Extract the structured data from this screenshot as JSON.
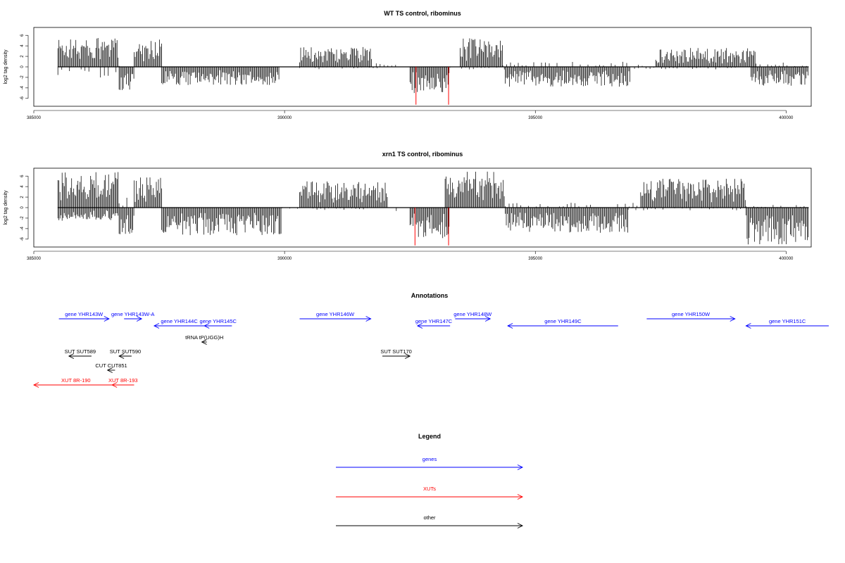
{
  "chart_data": [
    {
      "type": "bar",
      "title": "WT TS control, ribominus",
      "xlabel": "",
      "ylabel": "log2 tag density",
      "xlim": [
        385000,
        400500
      ],
      "ylim": [
        -7.5,
        7.5
      ],
      "xticks": [
        385000,
        390000,
        395000,
        400000
      ],
      "yticks": [
        -6,
        -4,
        -2,
        0,
        2,
        4,
        6
      ],
      "data_range": [
        385480,
        400450
      ],
      "grid": false,
      "series": [
        {
          "strand": "+",
          "color": "#000000",
          "segments": [
            {
              "from": 385480,
              "to": 386700,
              "max": 5.5
            },
            {
              "from": 386700,
              "to": 386750,
              "max": 1.0
            },
            {
              "from": 387000,
              "to": 387550,
              "max": 5.3
            },
            {
              "from": 390300,
              "to": 391750,
              "max": 3.8
            },
            {
              "from": 391750,
              "to": 392300,
              "max": 1.0
            },
            {
              "from": 393500,
              "to": 394350,
              "max": 5.5
            },
            {
              "from": 394350,
              "to": 397400,
              "max": 1.0
            },
            {
              "from": 397400,
              "to": 399400,
              "max": 3.6
            },
            {
              "from": 399400,
              "to": 400450,
              "max": 0.8
            }
          ]
        },
        {
          "strand": "-",
          "color": "#000000",
          "segments": [
            {
              "from": 385480,
              "to": 386700,
              "max": 2.2
            },
            {
              "from": 386700,
              "to": 387000,
              "max": 4.8
            },
            {
              "from": 387550,
              "to": 389900,
              "max": 3.5
            },
            {
              "from": 390300,
              "to": 391900,
              "max": 0.5
            },
            {
              "from": 392500,
              "to": 393300,
              "max": 5.0
            },
            {
              "from": 393300,
              "to": 394400,
              "max": 0.5
            },
            {
              "from": 394400,
              "to": 396900,
              "max": 3.8
            },
            {
              "from": 396900,
              "to": 399000,
              "max": 0.5
            },
            {
              "from": 399300,
              "to": 400450,
              "max": 3.6
            }
          ]
        },
        {
          "strand": "-",
          "color": "#ff0000",
          "positions": [
            392620,
            393270
          ],
          "value": 7.2
        }
      ]
    },
    {
      "type": "bar",
      "title": "xrn1 TS control, ribominus",
      "xlabel": "",
      "ylabel": "log2 tag density",
      "xlim": [
        385000,
        400500
      ],
      "ylim": [
        -7.5,
        7.5
      ],
      "xticks": [
        385000,
        390000,
        395000,
        400000
      ],
      "yticks": [
        -6,
        -4,
        -2,
        0,
        2,
        4,
        6
      ],
      "data_range": [
        385480,
        400450
      ],
      "grid": false,
      "series": [
        {
          "strand": "+",
          "color": "#000000",
          "segments": [
            {
              "from": 385480,
              "to": 386700,
              "max": 6.8
            },
            {
              "from": 386700,
              "to": 386950,
              "max": 2.0
            },
            {
              "from": 387000,
              "to": 387550,
              "max": 5.8
            },
            {
              "from": 390300,
              "to": 392050,
              "max": 5.0
            },
            {
              "from": 393200,
              "to": 394400,
              "max": 7.0
            },
            {
              "from": 394400,
              "to": 397100,
              "max": 1.0
            },
            {
              "from": 397100,
              "to": 399200,
              "max": 5.5
            },
            {
              "from": 399200,
              "to": 400450,
              "max": 0.5
            }
          ]
        },
        {
          "strand": "-",
          "color": "#000000",
          "segments": [
            {
              "from": 385480,
              "to": 386700,
              "max": 2.5
            },
            {
              "from": 386700,
              "to": 387000,
              "max": 5.2
            },
            {
              "from": 387550,
              "to": 389950,
              "max": 5.3
            },
            {
              "from": 389950,
              "to": 391900,
              "max": 0.6
            },
            {
              "from": 392150,
              "to": 392300,
              "max": 2.0
            },
            {
              "from": 392500,
              "to": 393300,
              "max": 6.0
            },
            {
              "from": 394400,
              "to": 396850,
              "max": 4.8
            },
            {
              "from": 396850,
              "to": 399200,
              "max": 0.5
            },
            {
              "from": 399200,
              "to": 400450,
              "max": 7.0
            }
          ]
        },
        {
          "strand": "-",
          "color": "#ff0000",
          "positions": [
            392600,
            393270
          ],
          "value": 7.2
        }
      ]
    }
  ],
  "annotations": {
    "title": "Annotations",
    "color_by_kind": {
      "gene": "#0000ff",
      "xut": "#ff0000",
      "other": "#000000"
    },
    "items": [
      {
        "label": "gene YHR143W",
        "kind": "gene",
        "strand": "+",
        "start": 385500,
        "end": 386500,
        "row": 0
      },
      {
        "label": "gene YHR143W-A",
        "kind": "gene",
        "strand": "+",
        "start": 386800,
        "end": 387150,
        "row": 0
      },
      {
        "label": "gene YHR144C",
        "kind": "gene",
        "strand": "-",
        "start": 387400,
        "end": 388400,
        "row": 1
      },
      {
        "label": "gene YHR145C",
        "kind": "gene",
        "strand": "-",
        "start": 388400,
        "end": 388950,
        "row": 1
      },
      {
        "label": "tRNA tP(UGG)H",
        "kind": "other",
        "strand": "-",
        "start": 388350,
        "end": 388450,
        "row": 2
      },
      {
        "label": "gene YHR146W",
        "kind": "gene",
        "strand": "+",
        "start": 390300,
        "end": 391720,
        "row": 0
      },
      {
        "label": "gene YHR147C",
        "kind": "gene",
        "strand": "-",
        "start": 392650,
        "end": 393300,
        "row": 1
      },
      {
        "label": "gene YHR148W",
        "kind": "gene",
        "strand": "+",
        "start": 393400,
        "end": 394100,
        "row": 0
      },
      {
        "label": "gene YHR149C",
        "kind": "gene",
        "strand": "-",
        "start": 394450,
        "end": 396650,
        "row": 1
      },
      {
        "label": "gene YHR150W",
        "kind": "gene",
        "strand": "+",
        "start": 397220,
        "end": 398980,
        "row": 0
      },
      {
        "label": "gene YHR151C",
        "kind": "gene",
        "strand": "-",
        "start": 399200,
        "end": 400850,
        "row": 1
      },
      {
        "label": "SUT SUT589",
        "kind": "other",
        "strand": "-",
        "start": 385700,
        "end": 386150,
        "row": 3
      },
      {
        "label": "SUT SUT590",
        "kind": "other",
        "strand": "-",
        "start": 386700,
        "end": 386950,
        "row": 3
      },
      {
        "label": "SUT SUT170",
        "kind": "other",
        "strand": "+",
        "start": 391950,
        "end": 392500,
        "row": 3
      },
      {
        "label": "CUT CUT851",
        "kind": "other",
        "strand": "-",
        "start": 386470,
        "end": 386620,
        "row": 4
      },
      {
        "label": "XUT 8R-190",
        "kind": "xut",
        "strand": "-",
        "start": 385000,
        "end": 386680,
        "row": 5
      },
      {
        "label": "XUT 8R-193",
        "kind": "xut",
        "strand": "-",
        "start": 386560,
        "end": 387000,
        "row": 5
      }
    ]
  },
  "legend": {
    "title": "Legend",
    "items": [
      {
        "label": "genes",
        "color": "#0000ff"
      },
      {
        "label": "XUTs",
        "color": "#ff0000"
      },
      {
        "label": "other",
        "color": "#000000"
      }
    ]
  }
}
